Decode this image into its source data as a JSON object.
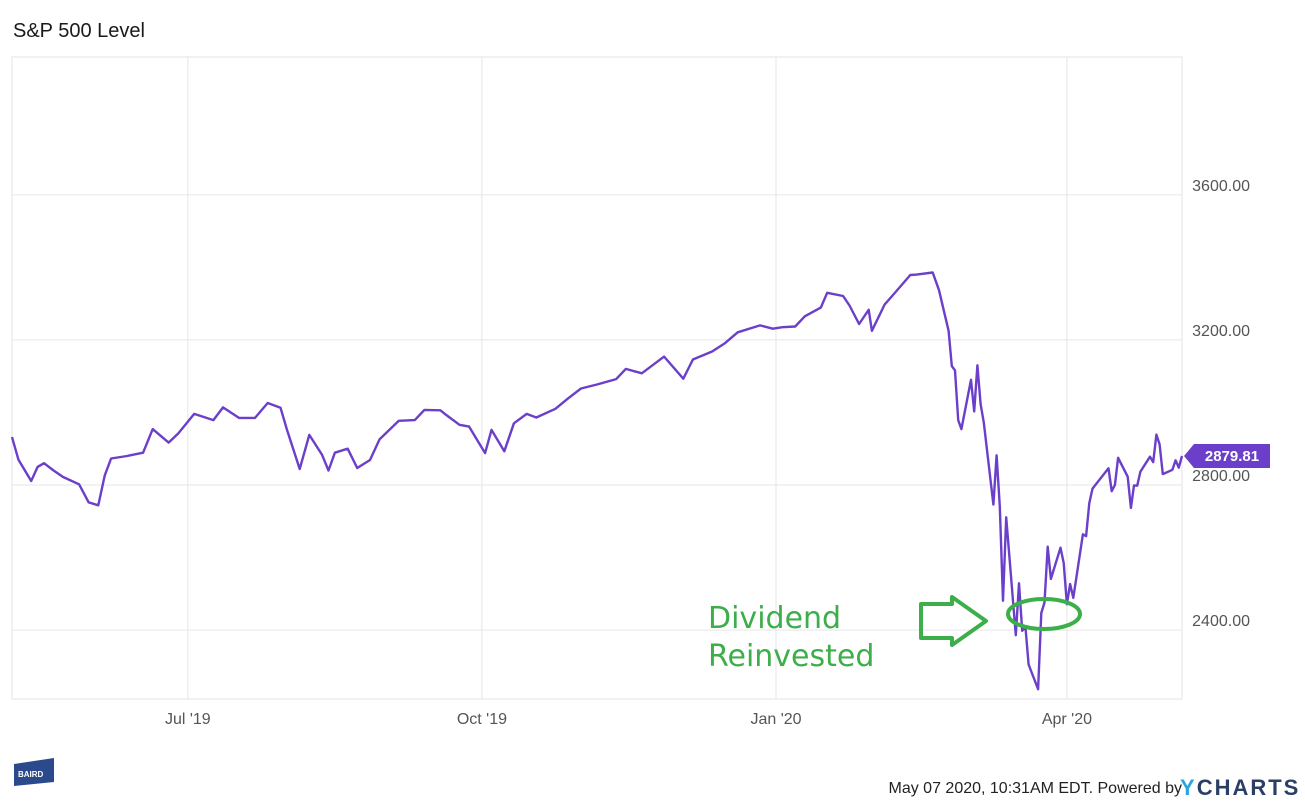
{
  "title": "S&P 500 Level",
  "footer": {
    "text": "May 07 2020, 10:31AM EDT. Powered by",
    "logo_y": "Y",
    "logo_rest": "CHARTS",
    "baird_logo": "BAIRD"
  },
  "annotation": {
    "line1": "Dividend",
    "line2": "Reinvested",
    "color": "#3cae4a"
  },
  "chart_data": {
    "type": "line",
    "title": "S&P 500 Level",
    "xlabel": "",
    "ylabel": "",
    "ylim": [
      2210,
      3980
    ],
    "xlim": [
      "2019-05-07",
      "2020-05-07"
    ],
    "y_ticks": [
      {
        "value": 2400,
        "label": "2400.00"
      },
      {
        "value": 2800,
        "label": "2800.00"
      },
      {
        "value": 3200,
        "label": "3200.00"
      },
      {
        "value": 3600,
        "label": "3600.00"
      }
    ],
    "x_ticks": [
      {
        "date": "2019-07-01",
        "label": "Jul '19"
      },
      {
        "date": "2019-10-01",
        "label": "Oct '19"
      },
      {
        "date": "2020-01-01",
        "label": "Jan '20"
      },
      {
        "date": "2020-04-01",
        "label": "Apr '20"
      }
    ],
    "grid": true,
    "line_color": "#6b3fc9",
    "last_value_label": "2879.81",
    "last_value": 2879.81,
    "series": [
      {
        "points": [
          [
            "2019-05-07",
            2932
          ],
          [
            "2019-05-09",
            2870
          ],
          [
            "2019-05-13",
            2811
          ],
          [
            "2019-05-15",
            2850
          ],
          [
            "2019-05-17",
            2860
          ],
          [
            "2019-05-20",
            2840
          ],
          [
            "2019-05-23",
            2822
          ],
          [
            "2019-05-28",
            2802
          ],
          [
            "2019-05-31",
            2752
          ],
          [
            "2019-06-03",
            2744
          ],
          [
            "2019-06-05",
            2826
          ],
          [
            "2019-06-07",
            2873
          ],
          [
            "2019-06-12",
            2880
          ],
          [
            "2019-06-17",
            2889
          ],
          [
            "2019-06-20",
            2954
          ],
          [
            "2019-06-25",
            2917
          ],
          [
            "2019-06-28",
            2942
          ],
          [
            "2019-07-03",
            2996
          ],
          [
            "2019-07-09",
            2979
          ],
          [
            "2019-07-12",
            3014
          ],
          [
            "2019-07-17",
            2985
          ],
          [
            "2019-07-22",
            2985
          ],
          [
            "2019-07-26",
            3026
          ],
          [
            "2019-07-30",
            3013
          ],
          [
            "2019-08-01",
            2953
          ],
          [
            "2019-08-05",
            2844
          ],
          [
            "2019-08-08",
            2938
          ],
          [
            "2019-08-12",
            2883
          ],
          [
            "2019-08-14",
            2840
          ],
          [
            "2019-08-16",
            2889
          ],
          [
            "2019-08-20",
            2900
          ],
          [
            "2019-08-23",
            2847
          ],
          [
            "2019-08-27",
            2869
          ],
          [
            "2019-08-30",
            2926
          ],
          [
            "2019-09-05",
            2977
          ],
          [
            "2019-09-10",
            2979
          ],
          [
            "2019-09-13",
            3007
          ],
          [
            "2019-09-18",
            3006
          ],
          [
            "2019-09-20",
            2992
          ],
          [
            "2019-09-24",
            2966
          ],
          [
            "2019-09-27",
            2961
          ],
          [
            "2019-10-02",
            2888
          ],
          [
            "2019-10-04",
            2952
          ],
          [
            "2019-10-08",
            2893
          ],
          [
            "2019-10-11",
            2970
          ],
          [
            "2019-10-15",
            2996
          ],
          [
            "2019-10-18",
            2986
          ],
          [
            "2019-10-24",
            3010
          ],
          [
            "2019-10-28",
            3039
          ],
          [
            "2019-11-01",
            3066
          ],
          [
            "2019-11-06",
            3077
          ],
          [
            "2019-11-12",
            3092
          ],
          [
            "2019-11-15",
            3120
          ],
          [
            "2019-11-20",
            3108
          ],
          [
            "2019-11-27",
            3154
          ],
          [
            "2019-12-03",
            3093
          ],
          [
            "2019-12-06",
            3146
          ],
          [
            "2019-12-12",
            3168
          ],
          [
            "2019-12-16",
            3191
          ],
          [
            "2019-12-20",
            3221
          ],
          [
            "2019-12-27",
            3240
          ],
          [
            "2019-12-31",
            3231
          ],
          [
            "2020-01-03",
            3235
          ],
          [
            "2020-01-07",
            3237
          ],
          [
            "2020-01-10",
            3265
          ],
          [
            "2020-01-15",
            3289
          ],
          [
            "2020-01-17",
            3330
          ],
          [
            "2020-01-22",
            3321
          ],
          [
            "2020-01-24",
            3295
          ],
          [
            "2020-01-27",
            3244
          ],
          [
            "2020-01-30",
            3283
          ],
          [
            "2020-01-31",
            3225
          ],
          [
            "2020-02-04",
            3298
          ],
          [
            "2020-02-07",
            3328
          ],
          [
            "2020-02-12",
            3379
          ],
          [
            "2020-02-14",
            3380
          ],
          [
            "2020-02-19",
            3386
          ],
          [
            "2020-02-21",
            3337
          ],
          [
            "2020-02-24",
            3225
          ],
          [
            "2020-02-25",
            3128
          ],
          [
            "2020-02-26",
            3116
          ],
          [
            "2020-02-27",
            2979
          ],
          [
            "2020-02-28",
            2954
          ],
          [
            "2020-03-02",
            3090
          ],
          [
            "2020-03-03",
            3003
          ],
          [
            "2020-03-04",
            3130
          ],
          [
            "2020-03-05",
            3023
          ],
          [
            "2020-03-06",
            2972
          ],
          [
            "2020-03-09",
            2746
          ],
          [
            "2020-03-10",
            2882
          ],
          [
            "2020-03-11",
            2741
          ],
          [
            "2020-03-12",
            2481
          ],
          [
            "2020-03-13",
            2711
          ],
          [
            "2020-03-16",
            2386
          ],
          [
            "2020-03-17",
            2529
          ],
          [
            "2020-03-18",
            2398
          ],
          [
            "2020-03-19",
            2409
          ],
          [
            "2020-03-20",
            2305
          ],
          [
            "2020-03-23",
            2237
          ],
          [
            "2020-03-24",
            2447
          ],
          [
            "2020-03-25",
            2476
          ],
          [
            "2020-03-26",
            2630
          ],
          [
            "2020-03-27",
            2541
          ],
          [
            "2020-03-30",
            2627
          ],
          [
            "2020-03-31",
            2585
          ],
          [
            "2020-04-01",
            2471
          ],
          [
            "2020-04-02",
            2527
          ],
          [
            "2020-04-03",
            2489
          ],
          [
            "2020-04-06",
            2664
          ],
          [
            "2020-04-07",
            2659
          ],
          [
            "2020-04-08",
            2750
          ],
          [
            "2020-04-09",
            2790
          ],
          [
            "2020-04-14",
            2846
          ],
          [
            "2020-04-15",
            2783
          ],
          [
            "2020-04-16",
            2800
          ],
          [
            "2020-04-17",
            2875
          ],
          [
            "2020-04-20",
            2823
          ],
          [
            "2020-04-21",
            2737
          ],
          [
            "2020-04-22",
            2799
          ],
          [
            "2020-04-23",
            2798
          ],
          [
            "2020-04-24",
            2837
          ],
          [
            "2020-04-27",
            2878
          ],
          [
            "2020-04-28",
            2863
          ],
          [
            "2020-04-29",
            2939
          ],
          [
            "2020-04-30",
            2912
          ],
          [
            "2020-05-01",
            2830
          ],
          [
            "2020-05-04",
            2842
          ],
          [
            "2020-05-05",
            2868
          ],
          [
            "2020-05-06",
            2848
          ],
          [
            "2020-05-07",
            2880
          ]
        ]
      }
    ]
  }
}
